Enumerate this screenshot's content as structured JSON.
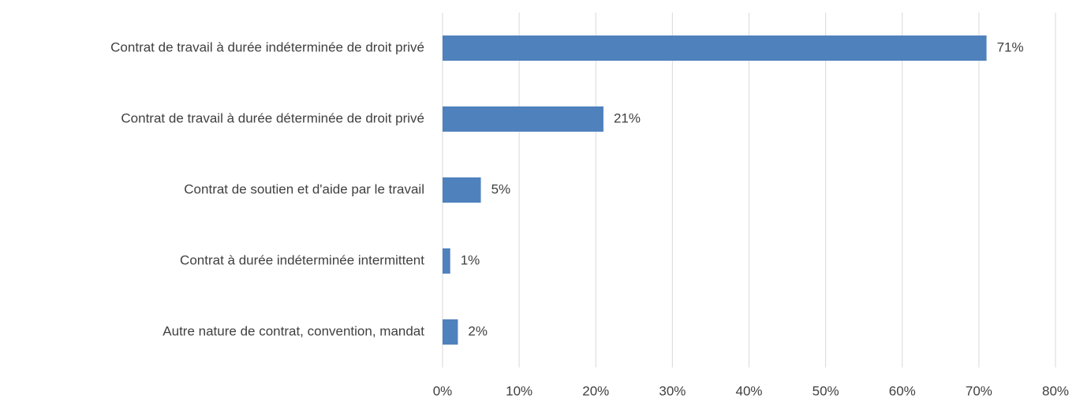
{
  "chart_data": {
    "type": "bar",
    "orientation": "horizontal",
    "categories": [
      "Contrat de travail à durée indéterminée de droit privé",
      "Contrat de travail à durée déterminée de droit privé",
      "Contrat de soutien et d'aide par le travail",
      "Contrat à durée indéterminée intermittent",
      "Autre nature de contrat, convention, mandat"
    ],
    "values": [
      71,
      21,
      5,
      1,
      2
    ],
    "value_labels": [
      "71%",
      "21%",
      "5%",
      "1%",
      "2%"
    ],
    "color": "#4f81bd",
    "xlim": [
      0,
      80
    ],
    "xticks": [
      {
        "value": 0,
        "label": "0%"
      },
      {
        "value": 10,
        "label": "10%"
      },
      {
        "value": 20,
        "label": "20%"
      },
      {
        "value": 30,
        "label": "30%"
      },
      {
        "value": 40,
        "label": "40%"
      },
      {
        "value": 50,
        "label": "50%"
      },
      {
        "value": 60,
        "label": "60%"
      },
      {
        "value": 70,
        "label": "70%"
      },
      {
        "value": 80,
        "label": "80%"
      }
    ],
    "grid": true
  }
}
